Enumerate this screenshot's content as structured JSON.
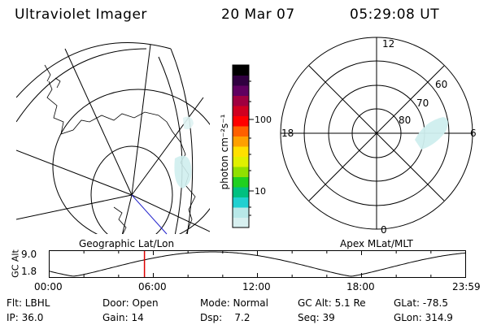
{
  "header": {
    "title": "Ultraviolet Imager",
    "date": "20 Mar 07",
    "time": "05:29:08 UT"
  },
  "colorbar": {
    "label": "photon cm⁻²s⁻¹",
    "ticks": [
      {
        "label": "100",
        "value": 100
      },
      {
        "label": "10",
        "value": 10
      }
    ],
    "colors": [
      "#d8f0f0",
      "#b8e8e8",
      "#20d0d0",
      "#00c080",
      "#20d020",
      "#90e000",
      "#e0f000",
      "#ffe000",
      "#ffa000",
      "#ff6000",
      "#ff0000",
      "#d00020",
      "#a00040",
      "#600060",
      "#300040",
      "#000000"
    ]
  },
  "polar_plot": {
    "mlt_labels": [
      "12",
      "18",
      "6",
      "0"
    ],
    "lat_labels": [
      "80",
      "70",
      "60"
    ]
  },
  "map_labels": {
    "left": "Geographic Lat/Lon",
    "right": "Apex MLat/MLT"
  },
  "altitude_plot": {
    "ylabel": "GC Alt",
    "yticks": [
      "9.0",
      "1.8"
    ],
    "xticks": [
      "00:00",
      "06:00",
      "12:00",
      "18:00",
      "23:59"
    ],
    "marker_hour": 5.49,
    "marker_color": "#dd0000"
  },
  "info": {
    "filter": "Flt: LBHL",
    "door": "Door: Open",
    "mode": "Mode: Normal",
    "gc_alt": "GC Alt: 5.1 Re",
    "glat": "GLat: -78.5",
    "ip": "IP: 36.0",
    "gain": "Gain: 14",
    "dsp": "Dsp:    7.2",
    "seq": "Seq: 39",
    "glon": "GLon: 314.9"
  }
}
